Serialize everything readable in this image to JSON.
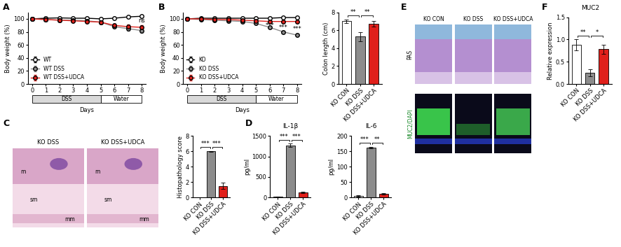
{
  "panel_labels": [
    "A",
    "B",
    "C",
    "D",
    "E",
    "F"
  ],
  "images": {
    "C": {
      "columns": [
        "KO DSS",
        "KO DSS+UDCA"
      ],
      "marks": [
        "m",
        "sm",
        "mm"
      ]
    },
    "E": {
      "columns": [
        "KO CON",
        "KO DSS",
        "KO DSS+UDCA"
      ],
      "rows": [
        "PAS",
        "MUC2/DAPI"
      ]
    }
  },
  "chart_data": [
    {
      "type": "line",
      "x_label": "Days",
      "y_label": "Body weight (%)",
      "x": [
        0,
        1,
        2,
        3,
        4,
        5,
        6,
        7,
        8
      ],
      "xlim": [
        -0.3,
        8.3
      ],
      "xticks": [
        0,
        1,
        2,
        3,
        4,
        5,
        6,
        7,
        8
      ],
      "ylim": [
        0,
        110
      ],
      "yticks": [
        0,
        20,
        40,
        60,
        80,
        100
      ],
      "legend": "lower left",
      "marker": "o",
      "series": [
        {
          "name": "WT",
          "color": "#ffffff",
          "values": [
            100,
            101,
            101.5,
            101,
            101,
            100,
            101,
            103,
            104
          ],
          "errors": [
            0.5,
            0.5,
            0.5,
            0.5,
            0.5,
            0.5,
            0.5,
            0.6,
            0.6
          ]
        },
        {
          "name": "WT DSS",
          "color": "#8c8c8c",
          "values": [
            100,
            99,
            98,
            98,
            97,
            95,
            88,
            85,
            82
          ],
          "errors": [
            0.5,
            0.6,
            0.8,
            1,
            1.2,
            1.5,
            2.5,
            3,
            4
          ]
        },
        {
          "name": "WT DSS+UDCA",
          "color": "#e0201b",
          "values": [
            100,
            99,
            98,
            97,
            96,
            95,
            90,
            88,
            87
          ],
          "errors": [
            0.5,
            0.6,
            0.8,
            1,
            1.2,
            1.5,
            2.5,
            3,
            3.5
          ]
        }
      ],
      "phases": [
        {
          "label": "DSS",
          "start": 0,
          "end": 5
        },
        {
          "label": "Water",
          "start": 5,
          "end": 8
        }
      ],
      "annotations": [
        {
          "text": "ns",
          "x": 8,
          "y": 97
        }
      ]
    },
    {
      "type": "line",
      "x_label": "Days",
      "y_label": "Body weight (%)",
      "x": [
        0,
        1,
        2,
        3,
        4,
        5,
        6,
        7,
        8
      ],
      "xlim": [
        -0.3,
        8.3
      ],
      "xticks": [
        0,
        1,
        2,
        3,
        4,
        5,
        6,
        7,
        8
      ],
      "ylim": [
        0,
        110
      ],
      "yticks": [
        0,
        20,
        40,
        60,
        80,
        100
      ],
      "legend": "lower left",
      "marker": "o",
      "series": [
        {
          "name": "KO",
          "color": "#ffffff",
          "values": [
            100,
            101,
            101,
            101,
            101,
            101,
            101,
            102,
            102
          ],
          "errors": [
            0.5,
            0.5,
            0.5,
            0.5,
            0.5,
            0.5,
            0.5,
            0.5,
            0.5
          ]
        },
        {
          "name": "KO DSS",
          "color": "#8c8c8c",
          "values": [
            100,
            99,
            98,
            97,
            96,
            93,
            87,
            80,
            75
          ],
          "errors": [
            0.5,
            0.6,
            0.8,
            1,
            1,
            1.2,
            1.5,
            1.5,
            1.5
          ]
        },
        {
          "name": "KO DSS+UDCA",
          "color": "#e0201b",
          "values": [
            100,
            100,
            99,
            99,
            98,
            97,
            96,
            96,
            96
          ],
          "errors": [
            0.5,
            0.5,
            0.6,
            0.6,
            0.8,
            0.8,
            1,
            1,
            1
          ]
        }
      ],
      "phases": [
        {
          "label": "DSS",
          "start": 0,
          "end": 5
        },
        {
          "label": "Water",
          "start": 5,
          "end": 8
        }
      ],
      "annotations": [
        {
          "text": "***",
          "x": 6,
          "y": 90
        },
        {
          "text": "***",
          "x": 7,
          "y": 87
        },
        {
          "text": "***",
          "x": 8,
          "y": 84
        }
      ]
    },
    {
      "type": "bar",
      "y_label": "Colon length (cm)",
      "categories": [
        "KO CON",
        "KO DSS",
        "KO DSS+UDCA"
      ],
      "values": [
        7.0,
        5.3,
        6.7
      ],
      "errors": [
        0.2,
        0.5,
        0.3
      ],
      "colors": [
        "#ffffff",
        "#8c8c8c",
        "#e0201b"
      ],
      "ylim": [
        0,
        8
      ],
      "yticks": [
        0,
        2,
        4,
        6,
        8
      ],
      "comparisons": [
        {
          "from": 0,
          "to": 1,
          "label": "**"
        },
        {
          "from": 1,
          "to": 2,
          "label": "**"
        }
      ]
    },
    {
      "type": "bar",
      "y_label": "Histopathology score",
      "categories": [
        "KO CON",
        "KO DSS",
        "KO DSS+UDCA"
      ],
      "values": [
        0,
        6,
        1.5
      ],
      "errors": [
        0,
        0.05,
        0.4
      ],
      "colors": [
        "#ffffff",
        "#8c8c8c",
        "#e0201b"
      ],
      "ylim": [
        0,
        8
      ],
      "yticks": [
        0,
        2,
        4,
        6,
        8
      ],
      "comparisons": [
        {
          "from": 0,
          "to": 1,
          "label": "***"
        },
        {
          "from": 1,
          "to": 2,
          "label": "***"
        }
      ]
    },
    {
      "type": "bar",
      "title": "IL-1β",
      "y_label": "pg/ml",
      "categories": [
        "KO CON",
        "KO DSS",
        "KO DSS+UDCA"
      ],
      "values": [
        20,
        1270,
        130
      ],
      "errors": [
        10,
        40,
        20
      ],
      "colors": [
        "#ffffff",
        "#8c8c8c",
        "#e0201b"
      ],
      "ylim": [
        0,
        1500
      ],
      "yticks": [
        0,
        500,
        1000,
        1500
      ],
      "comparisons": [
        {
          "from": 0,
          "to": 1,
          "label": "***"
        },
        {
          "from": 1,
          "to": 2,
          "label": "***"
        }
      ]
    },
    {
      "type": "bar",
      "title": "IL-6",
      "y_label": "pg/ml",
      "categories": [
        "KO CON",
        "KO DSS",
        "KO DSS+UDCA"
      ],
      "values": [
        5,
        162,
        12
      ],
      "errors": [
        2,
        3,
        3
      ],
      "colors": [
        "#ffffff",
        "#8c8c8c",
        "#e0201b"
      ],
      "ylim": [
        0,
        200
      ],
      "yticks": [
        0,
        50,
        100,
        150,
        200
      ],
      "comparisons": [
        {
          "from": 0,
          "to": 1,
          "label": "***"
        },
        {
          "from": 1,
          "to": 2,
          "label": "**"
        }
      ]
    },
    {
      "type": "bar",
      "title": "MUC2",
      "y_label": "Relative expression",
      "categories": [
        "KO CON",
        "KO DSS",
        "KO DSS+UDCA"
      ],
      "values": [
        0.88,
        0.25,
        0.78
      ],
      "errors": [
        0.12,
        0.08,
        0.1
      ],
      "colors": [
        "#ffffff",
        "#8c8c8c",
        "#e0201b"
      ],
      "ylim": [
        0,
        1.5
      ],
      "yticks": [
        {
          "value": 0,
          "label": "0.0"
        },
        {
          "value": 0.5,
          "label": "0.5"
        },
        {
          "value": 1.0,
          "label": "1.0"
        },
        {
          "value": 1.5,
          "label": "1.5"
        }
      ],
      "comparisons": [
        {
          "from": 0,
          "to": 1,
          "label": "**"
        },
        {
          "from": 1,
          "to": 2,
          "label": "*"
        }
      ]
    }
  ]
}
